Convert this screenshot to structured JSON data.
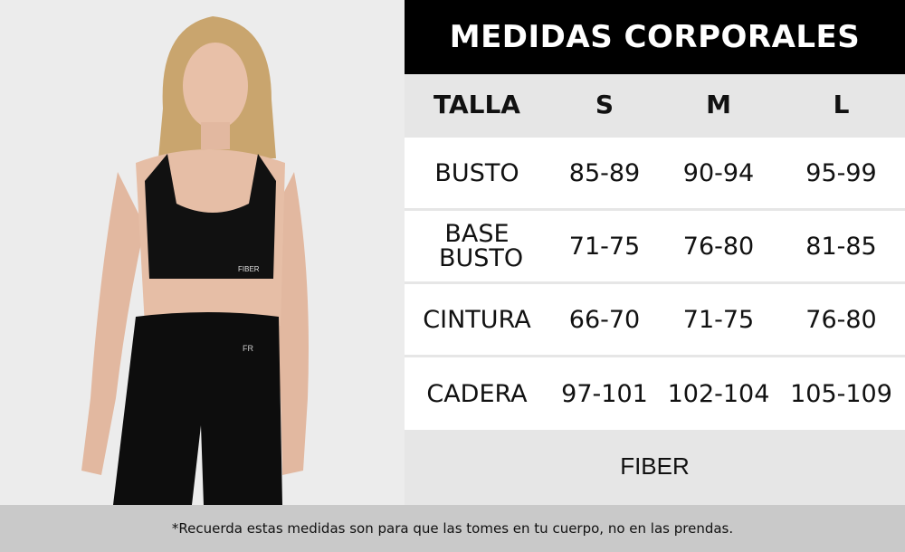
{
  "title": "MEDIDAS CORPORALES",
  "header": [
    "TALLA",
    "S",
    "M",
    "L"
  ],
  "rows": [
    {
      "label": "BUSTO",
      "values": [
        "85-89",
        "90-94",
        "95-99"
      ]
    },
    {
      "label": "BASE BUSTO",
      "values": [
        "71-75",
        "76-80",
        "81-85"
      ]
    },
    {
      "label": "CINTURA",
      "values": [
        "66-70",
        "71-75",
        "76-80"
      ]
    },
    {
      "label": "CADERA",
      "values": [
        "97-101",
        "102-104",
        "105-109"
      ]
    }
  ],
  "brand": "FIBER",
  "footnote": "*Recuerda estas medidas son para que las tomes en tu cuerpo, no en las prendas.",
  "photo": {
    "top_logo": "FIBER",
    "legging_logo": "FR"
  }
}
